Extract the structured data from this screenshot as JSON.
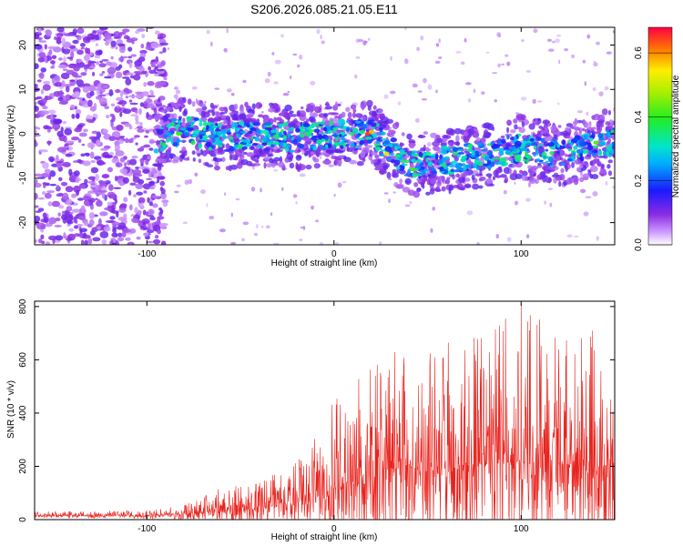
{
  "figure_title": "S206.2026.085.21.05.E11",
  "colors": {
    "snr_line": "#e8221c",
    "frame": "#000000",
    "background": "#ffffff"
  },
  "chart_data": [
    {
      "type": "heatmap",
      "title": "",
      "xlabel": "Height of straight line (km)",
      "ylabel": "Frequency (Hz)",
      "xlim": [
        -160,
        150
      ],
      "ylim": [
        -25,
        24
      ],
      "x_ticks": [
        {
          "value": -100,
          "label": "-100"
        },
        {
          "value": 0,
          "label": "0"
        },
        {
          "value": 100,
          "label": "100"
        }
      ],
      "y_ticks": [
        {
          "value": -20,
          "label": "-20"
        },
        {
          "value": -10,
          "label": "-10"
        },
        {
          "value": 0,
          "label": "0"
        },
        {
          "value": 10,
          "label": "10"
        },
        {
          "value": 20,
          "label": "20"
        }
      ],
      "colorbar": {
        "label": "Normalized spectral amplitude",
        "range": [
          0.0,
          0.68
        ],
        "ticks": [
          {
            "value": 0.0,
            "label": "0.0"
          },
          {
            "value": 0.2,
            "label": "0.2"
          },
          {
            "value": 0.4,
            "label": "0.4"
          },
          {
            "value": 0.6,
            "label": "0.6"
          }
        ]
      },
      "description_of_ridge": [
        {
          "x": -95,
          "f": -1
        },
        {
          "x": -80,
          "f": 1
        },
        {
          "x": -60,
          "f": -1
        },
        {
          "x": -40,
          "f": 0
        },
        {
          "x": -20,
          "f": -1
        },
        {
          "x": 0,
          "f": 0
        },
        {
          "x": 20,
          "f": 0
        },
        {
          "x": 40,
          "f": -7
        },
        {
          "x": 60,
          "f": -6
        },
        {
          "x": 80,
          "f": -5
        },
        {
          "x": 100,
          "f": -3
        },
        {
          "x": 120,
          "f": -5
        },
        {
          "x": 145,
          "f": -2
        }
      ]
    },
    {
      "type": "line",
      "title": "",
      "xlabel": "Height of straight line (km)",
      "ylabel": "SNR (10 * v/v)",
      "xlim": [
        -160,
        150
      ],
      "ylim": [
        0,
        820
      ],
      "x_ticks": [
        {
          "value": -100,
          "label": "-100"
        },
        {
          "value": 0,
          "label": "0"
        },
        {
          "value": 100,
          "label": "100"
        }
      ],
      "y_ticks": [
        {
          "value": 0,
          "label": "0"
        },
        {
          "value": 200,
          "label": "200"
        },
        {
          "value": 400,
          "label": "400"
        },
        {
          "value": 600,
          "label": "600"
        },
        {
          "value": 800,
          "label": "800"
        }
      ],
      "envelope": [
        {
          "x": -160,
          "base": 15,
          "peak": 30
        },
        {
          "x": -100,
          "base": 15,
          "peak": 35
        },
        {
          "x": -80,
          "base": 20,
          "peak": 60
        },
        {
          "x": -60,
          "base": 30,
          "peak": 120
        },
        {
          "x": -40,
          "base": 40,
          "peak": 140
        },
        {
          "x": -20,
          "base": 70,
          "peak": 220
        },
        {
          "x": 0,
          "base": 120,
          "peak": 450
        },
        {
          "x": 20,
          "base": 180,
          "peak": 580
        },
        {
          "x": 40,
          "base": 200,
          "peak": 700
        },
        {
          "x": 60,
          "base": 200,
          "peak": 680
        },
        {
          "x": 80,
          "base": 210,
          "peak": 700
        },
        {
          "x": 100,
          "base": 220,
          "peak": 820
        },
        {
          "x": 120,
          "base": 210,
          "peak": 700
        },
        {
          "x": 150,
          "base": 200,
          "peak": 720
        }
      ]
    }
  ]
}
